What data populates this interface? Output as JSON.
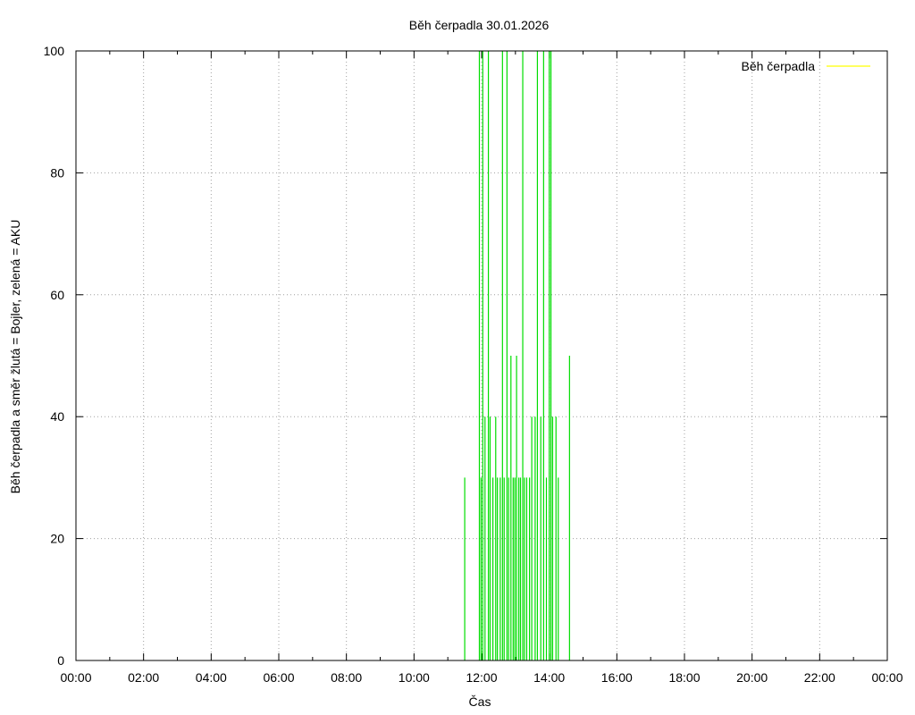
{
  "chart_data": {
    "type": "line",
    "title": "Běh čerpadla 30.01.2026",
    "xlabel": "Čas",
    "ylabel": "Běh čerpadla a směr žlutá = Bojler, zelená = AKU",
    "xlim": [
      "00:00",
      "24:00"
    ],
    "ylim": [
      0,
      100
    ],
    "x_ticks": [
      "00:00",
      "02:00",
      "04:00",
      "06:00",
      "08:00",
      "10:00",
      "12:00",
      "14:00",
      "16:00",
      "18:00",
      "20:00",
      "22:00",
      "00:00"
    ],
    "y_ticks": [
      "0",
      "20",
      "40",
      "60",
      "80",
      "100"
    ],
    "grid": true,
    "legend_position": "top-right",
    "series": [
      {
        "name": "Běh čerpadla",
        "color": "#ffff00",
        "x": [],
        "values": []
      },
      {
        "name": "",
        "color": "#00dd00",
        "x": [
          "11:30",
          "11:56",
          "11:59",
          "12:02",
          "12:06",
          "12:12",
          "12:15",
          "12:20",
          "12:25",
          "12:28",
          "12:33",
          "12:37",
          "12:40",
          "12:45",
          "12:48",
          "12:52",
          "12:56",
          "12:59",
          "13:02",
          "13:06",
          "13:09",
          "13:13",
          "13:16",
          "13:20",
          "13:25",
          "13:29",
          "13:35",
          "13:39",
          "13:45",
          "13:50",
          "13:55",
          "14:00",
          "14:03",
          "14:06",
          "14:12",
          "14:16",
          "14:36"
        ],
        "values": [
          30,
          100,
          30,
          100,
          40,
          100,
          40,
          30,
          40,
          30,
          30,
          100,
          30,
          100,
          30,
          50,
          30,
          30,
          50,
          30,
          30,
          100,
          30,
          30,
          30,
          40,
          40,
          100,
          40,
          100,
          30,
          100,
          100,
          40,
          40,
          30,
          50
        ]
      }
    ]
  }
}
